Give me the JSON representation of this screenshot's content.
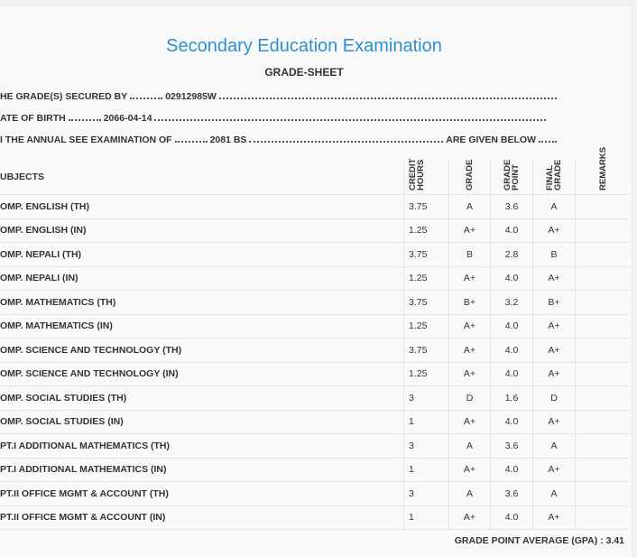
{
  "header": {
    "title": "Secondary Education Examination",
    "subtitle": "GRADE-SHEET"
  },
  "info": [
    {
      "label": "HE GRADE(S) SECURED BY",
      "value": "02912985W"
    },
    {
      "label": "ATE OF BIRTH",
      "value": "2066-04-14"
    },
    {
      "label": "I THE ANNUAL SEE EXAMINATION OF",
      "value": "2081 BS",
      "tail": "ARE GIVEN BELOW"
    }
  ],
  "table": {
    "columns": [
      "UBJECTS",
      "CREDIT HOURS",
      "GRADE",
      "GRADE POINT",
      "FINAL GRADE",
      "REMARKS"
    ],
    "rows": [
      {
        "subject": "OMP. ENGLISH (TH)",
        "credit_hours": 3.75,
        "grade": "A",
        "grade_point": "3.6",
        "final_grade": "A"
      },
      {
        "subject": "OMP. ENGLISH (IN)",
        "credit_hours": 1.25,
        "grade": "A+",
        "grade_point": "4.0",
        "final_grade": "A+"
      },
      {
        "subject": "OMP. NEPALI (TH)",
        "credit_hours": 3.75,
        "grade": "B",
        "grade_point": "2.8",
        "final_grade": "B"
      },
      {
        "subject": "OMP. NEPALI (IN)",
        "credit_hours": 1.25,
        "grade": "A+",
        "grade_point": "4.0",
        "final_grade": "A+"
      },
      {
        "subject": "OMP. MATHEMATICS (TH)",
        "credit_hours": 3.75,
        "grade": "B+",
        "grade_point": "3.2",
        "final_grade": "B+"
      },
      {
        "subject": "OMP. MATHEMATICS (IN)",
        "credit_hours": 1.25,
        "grade": "A+",
        "grade_point": "4.0",
        "final_grade": "A+"
      },
      {
        "subject": "OMP. SCIENCE AND TECHNOLOGY (TH)",
        "credit_hours": 3.75,
        "grade": "A+",
        "grade_point": "4.0",
        "final_grade": "A+"
      },
      {
        "subject": "OMP. SCIENCE AND TECHNOLOGY (IN)",
        "credit_hours": 1.25,
        "grade": "A+",
        "grade_point": "4.0",
        "final_grade": "A+"
      },
      {
        "subject": "OMP. SOCIAL STUDIES (TH)",
        "credit_hours": 3,
        "grade": "D",
        "grade_point": "1.6",
        "final_grade": "D"
      },
      {
        "subject": "OMP. SOCIAL STUDIES (IN)",
        "credit_hours": 1,
        "grade": "A+",
        "grade_point": "4.0",
        "final_grade": "A+"
      },
      {
        "subject": "PT.I ADDITIONAL MATHEMATICS (TH)",
        "credit_hours": 3,
        "grade": "A",
        "grade_point": "3.6",
        "final_grade": "A"
      },
      {
        "subject": "PT.I ADDITIONAL MATHEMATICS (IN)",
        "credit_hours": 1,
        "grade": "A+",
        "grade_point": "4.0",
        "final_grade": "A+"
      },
      {
        "subject": "PT.II OFFICE MGMT & ACCOUNT (TH)",
        "credit_hours": 3,
        "grade": "A",
        "grade_point": "3.6",
        "final_grade": "A"
      },
      {
        "subject": "PT.II OFFICE MGMT & ACCOUNT (IN)",
        "credit_hours": 1,
        "grade": "A+",
        "grade_point": "4.0",
        "final_grade": "A+"
      }
    ]
  },
  "gpa": {
    "label": "GRADE POINT AVERAGE (GPA) :",
    "value": "3.41"
  }
}
